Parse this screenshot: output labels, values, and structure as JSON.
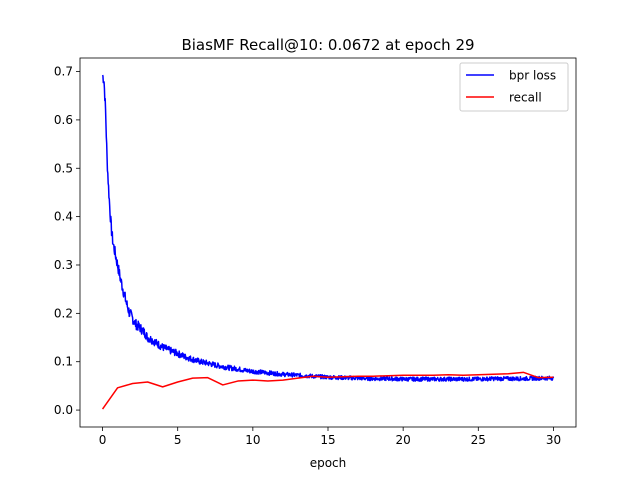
{
  "chart_data": {
    "type": "line",
    "title": "BiasMF Recall@10: 0.0672 at epoch 29",
    "xlabel": "epoch",
    "ylabel": "",
    "xlim": [
      -1.5,
      31.5
    ],
    "ylim": [
      -0.035,
      0.728
    ],
    "xticks": [
      0,
      5,
      10,
      15,
      20,
      25,
      30
    ],
    "yticks": [
      0.0,
      0.1,
      0.2,
      0.3,
      0.4,
      0.5,
      0.6,
      0.7
    ],
    "ytick_labels": [
      "0.0",
      "0.1",
      "0.2",
      "0.3",
      "0.4",
      "0.5",
      "0.6",
      "0.7"
    ],
    "grid": false,
    "legend_position": "top-right",
    "series": [
      {
        "name": "bpr loss",
        "color": "#0000ff",
        "x": [
          0,
          0.1,
          0.2,
          0.3,
          0.4,
          0.5,
          0.6,
          0.7,
          0.8,
          0.9,
          1.0,
          1.2,
          1.4,
          1.6,
          1.8,
          2.0,
          2.2,
          2.5,
          2.8,
          3.0,
          3.3,
          3.6,
          4.0,
          4.5,
          5.0,
          5.5,
          6.0,
          6.5,
          7.0,
          7.5,
          8.0,
          8.5,
          9.0,
          9.5,
          10.0,
          11.0,
          12.0,
          13.0,
          14.0,
          15.0,
          16.0,
          17.0,
          18.0,
          19.0,
          20.0,
          21.0,
          22.0,
          23.0,
          24.0,
          25.0,
          26.0,
          27.0,
          28.0,
          29.0,
          30.0
        ],
        "values": [
          0.693,
          0.68,
          0.62,
          0.52,
          0.46,
          0.41,
          0.37,
          0.345,
          0.33,
          0.315,
          0.3,
          0.27,
          0.245,
          0.22,
          0.2,
          0.19,
          0.178,
          0.17,
          0.16,
          0.15,
          0.145,
          0.138,
          0.13,
          0.123,
          0.117,
          0.11,
          0.105,
          0.1,
          0.097,
          0.093,
          0.09,
          0.087,
          0.085,
          0.082,
          0.08,
          0.077,
          0.074,
          0.072,
          0.07,
          0.068,
          0.067,
          0.066,
          0.065,
          0.065,
          0.064,
          0.064,
          0.064,
          0.064,
          0.064,
          0.064,
          0.065,
          0.065,
          0.065,
          0.066,
          0.066
        ],
        "noise": 0.012
      },
      {
        "name": "recall",
        "color": "#ff0000",
        "x": [
          0,
          1,
          2,
          3,
          4,
          5,
          6,
          7,
          8,
          9,
          10,
          11,
          12,
          13,
          14,
          15,
          16,
          17,
          18,
          19,
          20,
          21,
          22,
          23,
          24,
          25,
          26,
          27,
          28,
          29,
          30
        ],
        "values": [
          0.002,
          0.046,
          0.055,
          0.058,
          0.048,
          0.058,
          0.066,
          0.067,
          0.052,
          0.06,
          0.062,
          0.06,
          0.062,
          0.066,
          0.07,
          0.068,
          0.069,
          0.07,
          0.07,
          0.071,
          0.072,
          0.072,
          0.072,
          0.073,
          0.072,
          0.073,
          0.074,
          0.075,
          0.078,
          0.067,
          0.068
        ]
      }
    ]
  }
}
